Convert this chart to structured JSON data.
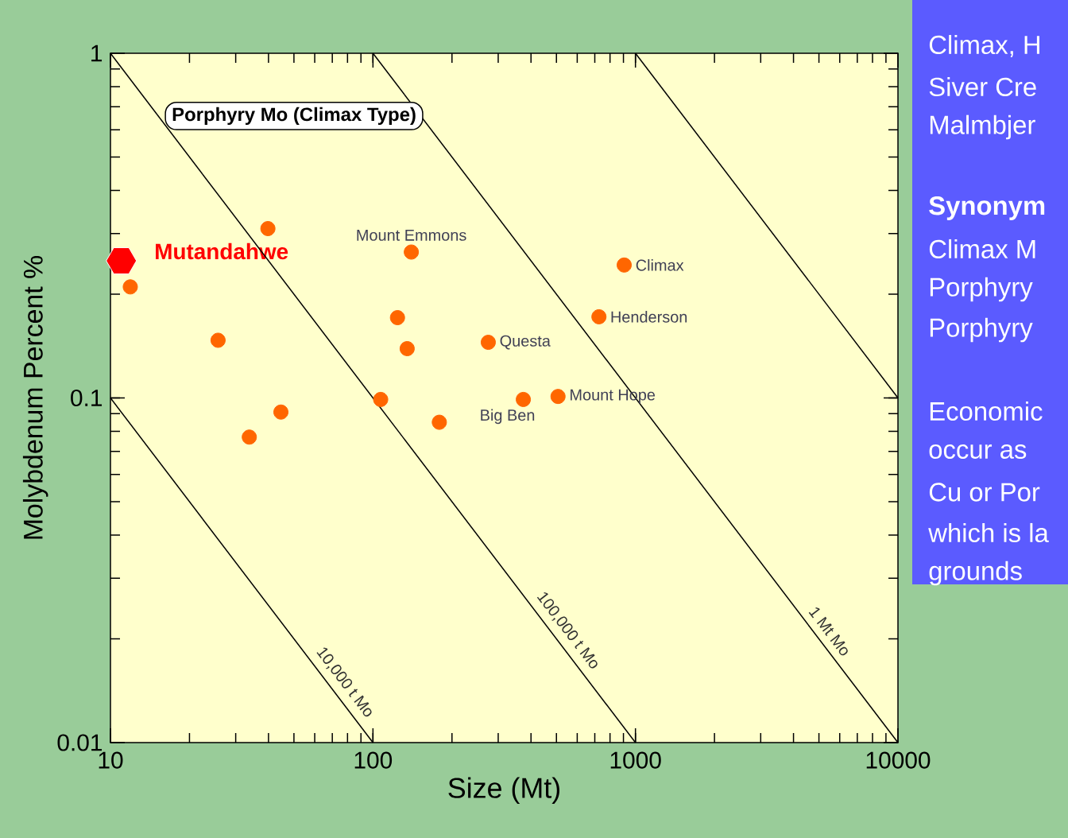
{
  "chart_data": [
    {
      "type": "scatter",
      "title": "Porphyry Mo (Climax Type)",
      "xlabel": "Size (Mt)",
      "ylabel": "Molybdenum Percent %",
      "log": "xy",
      "xlim": [
        10,
        10000
      ],
      "ylim": [
        0.01,
        1
      ],
      "xticks": [
        10,
        100,
        1000,
        10000
      ],
      "yticks": [
        0.01,
        0.1,
        1
      ],
      "series": [
        {
          "type": "scatter",
          "marker": "circle",
          "color": "#ff6600",
          "x": [
            11.9,
            39.8,
            25.7,
            33.8,
            44.6,
            107,
            140,
            124,
            135,
            179,
            275,
            374,
            507,
            726,
            906
          ],
          "values": [
            0.21,
            0.31,
            0.147,
            0.077,
            0.091,
            0.099,
            0.265,
            0.171,
            0.139,
            0.085,
            0.145,
            0.099,
            0.101,
            0.172,
            0.243
          ]
        },
        {
          "type": "scatter",
          "name": "Mutandahwe",
          "color": "#ff0000",
          "x": [
            11.0
          ],
          "values": [
            0.25
          ]
        },
        {
          "type": "line",
          "name": "10,000 t Mo",
          "color": "#000000",
          "x": [
            10,
            100
          ],
          "values": [
            0.1,
            0.01
          ]
        },
        {
          "type": "line",
          "name": "100,000 t Mo",
          "color": "#000000",
          "x": [
            10,
            1000
          ],
          "values": [
            1,
            0.01
          ]
        },
        {
          "type": "line",
          "name": "1 Mt Mo",
          "color": "#000000",
          "x": [
            100,
            10000
          ],
          "values": [
            1,
            0.01
          ]
        },
        {
          "type": "line",
          "color": "#000000",
          "x": [
            1000,
            10000
          ],
          "values": [
            1,
            0.1
          ]
        }
      ],
      "annotations": [
        {
          "text": "Mount Emmons",
          "x": 140,
          "y": 0.265
        },
        {
          "text": "Climax",
          "x": 906,
          "y": 0.243
        },
        {
          "text": "Henderson",
          "x": 726,
          "y": 0.172
        },
        {
          "text": "Questa",
          "x": 275,
          "y": 0.145
        },
        {
          "text": "Big Ben",
          "x": 374,
          "y": 0.099
        },
        {
          "text": "Mount Hope",
          "x": 507,
          "y": 0.101
        }
      ]
    },
    {
      "type": "other",
      "annotations": [
        "Climax, H",
        "Siver Cre",
        "Malmbjer",
        "**Synonym**",
        "Climax M",
        "Porphyry",
        "Porphyry",
        "Economic",
        "occur as",
        "Cu or Por",
        "which is la",
        "grounds"
      ]
    }
  ]
}
